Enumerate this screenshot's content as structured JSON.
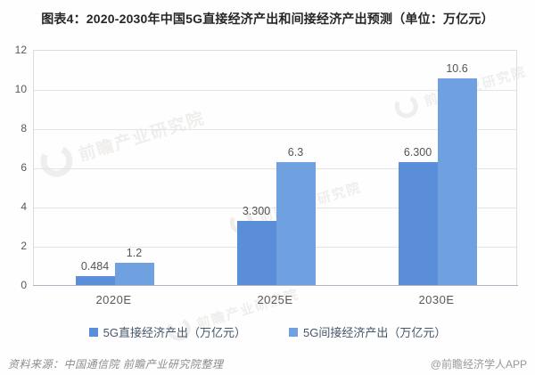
{
  "title": "图表4：2020-2030年中国5G直接经济产出和间接经济产出预测（单位：万亿元）",
  "chart_data": {
    "type": "bar",
    "categories": [
      "2020E",
      "2025E",
      "2030E"
    ],
    "series": [
      {
        "name": "5G直接经济产出（万亿元）",
        "values": [
          0.484,
          3.3,
          6.3
        ],
        "labels": [
          "0.484",
          "3.300",
          "6.300"
        ],
        "color": "#5a8ed8"
      },
      {
        "name": "5G间接经济产出（万亿元）",
        "values": [
          1.2,
          6.3,
          10.6
        ],
        "labels": [
          "1.2",
          "6.3",
          "10.6"
        ],
        "color": "#6fa0e0"
      }
    ],
    "ylim": [
      0,
      12
    ],
    "yticks": [
      0,
      2,
      4,
      6,
      8,
      10,
      12
    ],
    "grid": true,
    "legend_position": "bottom",
    "colors": {
      "gridline": "#e4e4e4",
      "axis_line": "#aab7c3",
      "tick_text": "#595959",
      "title_text": "#262626"
    }
  },
  "watermark": {
    "text": "前瞻产业研究院"
  },
  "footer": {
    "source": "资料来源：中国通信院  前瞻产业研究院整理",
    "credit": "@前瞻经济学人APP"
  }
}
